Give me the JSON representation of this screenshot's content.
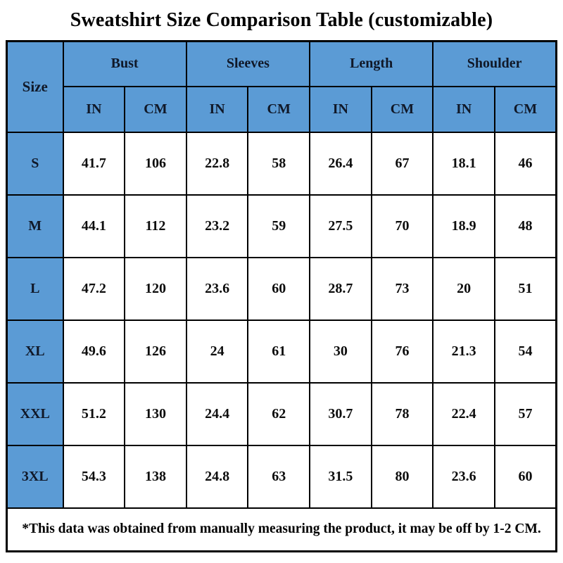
{
  "title": "Sweatshirt Size Comparison Table (customizable)",
  "table": {
    "size_header": "Size",
    "groups": [
      {
        "label": "Bust"
      },
      {
        "label": "Sleeves"
      },
      {
        "label": "Length"
      },
      {
        "label": "Shoulder"
      }
    ],
    "units": [
      "IN",
      "CM",
      "IN",
      "CM",
      "IN",
      "CM",
      "IN",
      "CM"
    ],
    "rows": [
      {
        "size": "S",
        "values": [
          "41.7",
          "106",
          "22.8",
          "58",
          "26.4",
          "67",
          "18.1",
          "46"
        ]
      },
      {
        "size": "M",
        "values": [
          "44.1",
          "112",
          "23.2",
          "59",
          "27.5",
          "70",
          "18.9",
          "48"
        ]
      },
      {
        "size": "L",
        "values": [
          "47.2",
          "120",
          "23.6",
          "60",
          "28.7",
          "73",
          "20",
          "51"
        ]
      },
      {
        "size": "XL",
        "values": [
          "49.6",
          "126",
          "24",
          "61",
          "30",
          "76",
          "21.3",
          "54"
        ]
      },
      {
        "size": "XXL",
        "values": [
          "51.2",
          "130",
          "24.4",
          "62",
          "30.7",
          "78",
          "22.4",
          "57"
        ]
      },
      {
        "size": "3XL",
        "values": [
          "54.3",
          "138",
          "24.8",
          "63",
          "31.5",
          "80",
          "23.6",
          "60"
        ]
      }
    ],
    "footnote": "*This data was obtained from manually measuring the product, it may be off by 1-2 CM."
  },
  "colors": {
    "header_blue": "#5B9BD5",
    "border": "#000000",
    "text": "#0d0d0d"
  }
}
